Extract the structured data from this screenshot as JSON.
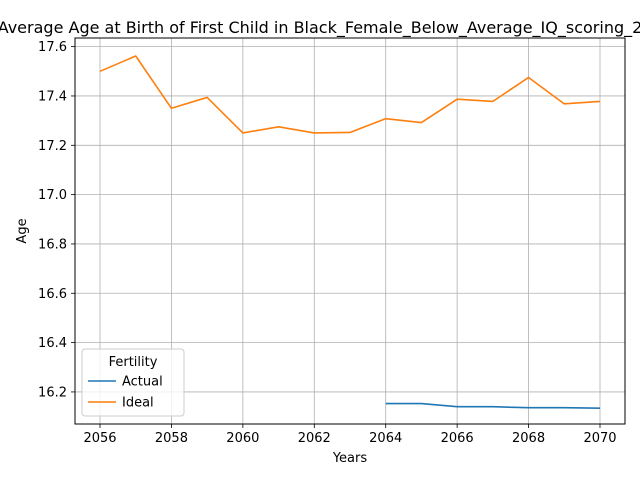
{
  "chart_data": {
    "type": "line",
    "title": "Average Age at Birth of First Child in Black_Female_Below_Average_IQ_scoring_2",
    "xlabel": "Years",
    "ylabel": "Age",
    "xlim": [
      2055.3,
      2070.7
    ],
    "ylim": [
      16.07,
      17.635
    ],
    "x_ticks": [
      2056,
      2058,
      2060,
      2062,
      2064,
      2066,
      2068,
      2070
    ],
    "y_ticks": [
      16.2,
      16.4,
      16.6,
      16.8,
      17.0,
      17.2,
      17.4,
      17.6
    ],
    "x_tick_labels": [
      "2056",
      "2058",
      "2060",
      "2062",
      "2064",
      "2066",
      "2068",
      "2070"
    ],
    "y_tick_labels": [
      "16.2",
      "16.4",
      "16.6",
      "16.8",
      "17.0",
      "17.2",
      "17.4",
      "17.6"
    ],
    "grid": true,
    "legend": {
      "title": "Fertility",
      "placement": "lower-left"
    },
    "series": [
      {
        "name": "Actual",
        "color": "#1f77b4",
        "points": [
          [
            2064,
            16.153
          ],
          [
            2065,
            16.153
          ],
          [
            2066,
            16.14
          ],
          [
            2067,
            16.14
          ],
          [
            2068,
            16.136
          ],
          [
            2069,
            16.136
          ],
          [
            2070,
            16.134
          ]
        ]
      },
      {
        "name": "Ideal",
        "color": "#ff7f0e",
        "points": [
          [
            2056,
            17.5
          ],
          [
            2057,
            17.562
          ],
          [
            2058,
            17.35
          ],
          [
            2059,
            17.394
          ],
          [
            2060,
            17.25
          ],
          [
            2061,
            17.275
          ],
          [
            2062,
            17.25
          ],
          [
            2063,
            17.252
          ],
          [
            2064,
            17.308
          ],
          [
            2065,
            17.292
          ],
          [
            2066,
            17.387
          ],
          [
            2067,
            17.378
          ],
          [
            2068,
            17.475
          ],
          [
            2069,
            17.368
          ],
          [
            2070,
            17.378
          ]
        ]
      }
    ]
  }
}
